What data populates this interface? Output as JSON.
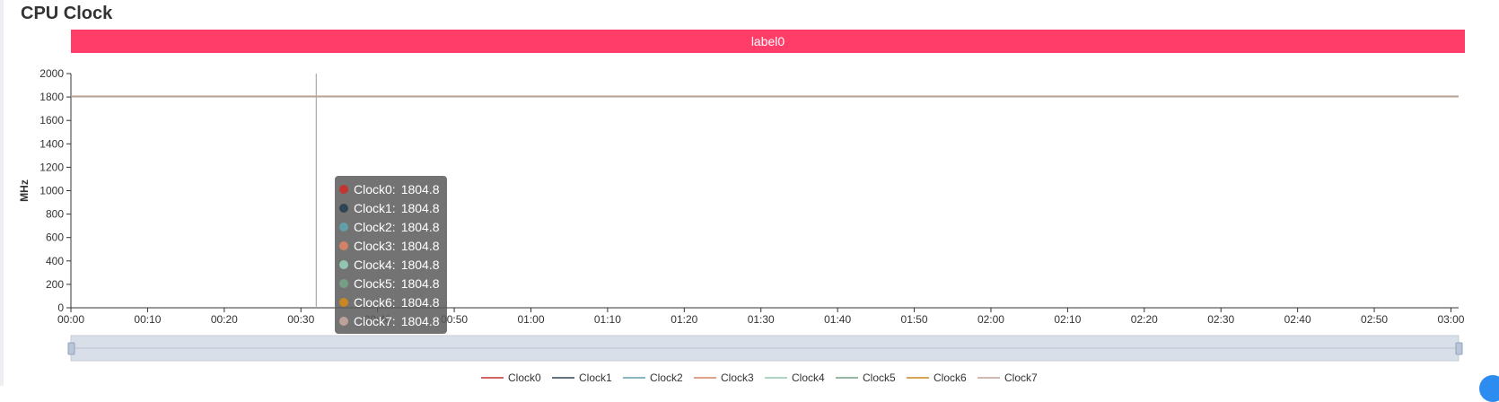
{
  "title": "CPU Clock",
  "banner_label": "label0",
  "chart_data": {
    "type": "line",
    "ylabel": "MHz",
    "xlabel": "",
    "ylim": [
      0,
      2000
    ],
    "yticks": [
      0,
      200,
      400,
      600,
      800,
      1000,
      1200,
      1400,
      1600,
      1800,
      2000
    ],
    "xlim": [
      "00:00",
      "03:01"
    ],
    "xticks": [
      "00:00",
      "00:10",
      "00:20",
      "00:30",
      "00:40",
      "00:50",
      "01:00",
      "01:10",
      "01:20",
      "01:30",
      "01:40",
      "01:50",
      "02:00",
      "02:10",
      "02:20",
      "02:30",
      "02:40",
      "02:50",
      "03:00"
    ],
    "grid": false,
    "legend_position": "bottom",
    "series": [
      {
        "name": "Clock0",
        "color": "#c23531",
        "values": [
          1804.8,
          1804.8
        ]
      },
      {
        "name": "Clock1",
        "color": "#2f4554",
        "values": [
          1804.8,
          1804.8
        ]
      },
      {
        "name": "Clock2",
        "color": "#61a0a8",
        "values": [
          1804.8,
          1804.8
        ]
      },
      {
        "name": "Clock3",
        "color": "#d48265",
        "values": [
          1804.8,
          1804.8
        ]
      },
      {
        "name": "Clock4",
        "color": "#91c7ae",
        "values": [
          1804.8,
          1804.8
        ]
      },
      {
        "name": "Clock5",
        "color": "#749f83",
        "values": [
          1804.8,
          1804.8
        ]
      },
      {
        "name": "Clock6",
        "color": "#ca8622",
        "values": [
          1804.8,
          1804.8
        ]
      },
      {
        "name": "Clock7",
        "color": "#bda29a",
        "values": [
          1804.8,
          1804.8
        ]
      }
    ],
    "x": [
      "00:00",
      "03:01"
    ],
    "cursor_x": "00:32",
    "tooltip": [
      {
        "name": "Clock0",
        "value": "1804.8",
        "color": "#c23531"
      },
      {
        "name": "Clock1",
        "value": "1804.8",
        "color": "#2f4554"
      },
      {
        "name": "Clock2",
        "value": "1804.8",
        "color": "#61a0a8"
      },
      {
        "name": "Clock3",
        "value": "1804.8",
        "color": "#d48265"
      },
      {
        "name": "Clock4",
        "value": "1804.8",
        "color": "#91c7ae"
      },
      {
        "name": "Clock5",
        "value": "1804.8",
        "color": "#749f83"
      },
      {
        "name": "Clock6",
        "value": "1804.8",
        "color": "#ca8622"
      },
      {
        "name": "Clock7",
        "value": "1804.8",
        "color": "#bda29a"
      }
    ]
  }
}
